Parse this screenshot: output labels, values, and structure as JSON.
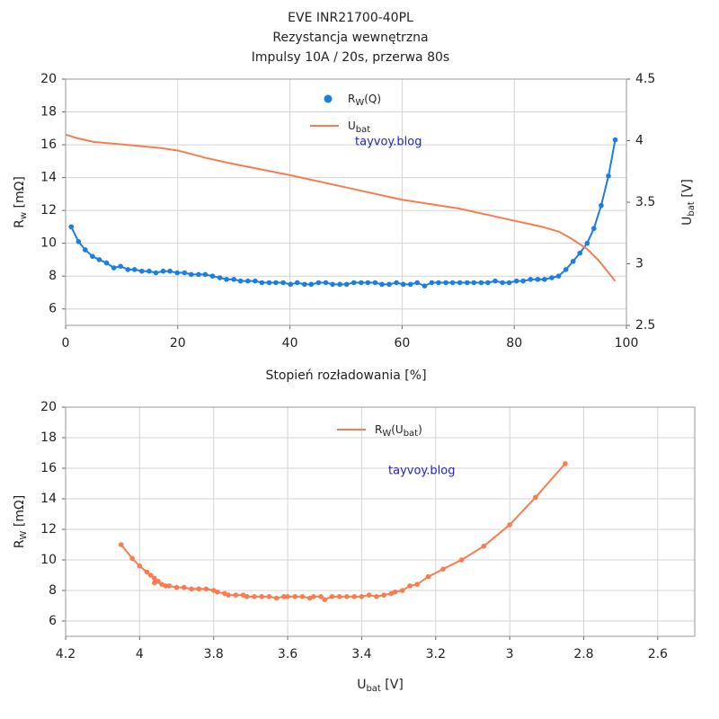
{
  "chart_data": [
    {
      "type": "line",
      "title": [
        "EVE INR21700-40PL",
        "Rezystancja wewnętrzna",
        "Impulsy 10A / 20s, przerwa 80s"
      ],
      "xlabel": [
        "Stopień rozładowania [%]"
      ],
      "ylabel": [
        "R",
        "w",
        " [mΩ]"
      ],
      "y2label": [
        "U",
        "bat",
        " [V]"
      ],
      "annotation": "tayvoy.blog",
      "xlim": [
        0,
        100
      ],
      "xticks": [
        0,
        20,
        40,
        60,
        80,
        100
      ],
      "ylim": [
        5,
        20
      ],
      "yticks": [
        6,
        8,
        10,
        12,
        14,
        16,
        18,
        20
      ],
      "y2lim": [
        2.5,
        4.5
      ],
      "y2ticks": [
        2.5,
        3,
        3.5,
        4,
        4.5
      ],
      "grid": true,
      "legend": "upper center",
      "series": [
        {
          "name": [
            "R",
            "W",
            "(Q)"
          ],
          "color": "#1a7ee6",
          "marker": true,
          "x": [
            1,
            2.3,
            3.5,
            4.8,
            6,
            7.3,
            8.6,
            9.8,
            11.1,
            12.3,
            13.6,
            14.9,
            16.1,
            17.4,
            18.6,
            19.9,
            21.2,
            22.4,
            23.7,
            24.9,
            26.2,
            27.5,
            28.7,
            30,
            31.2,
            32.5,
            33.8,
            35,
            36.3,
            37.5,
            38.8,
            40.1,
            41.3,
            42.6,
            43.8,
            45.1,
            46.4,
            47.6,
            48.9,
            50.1,
            51.4,
            52.7,
            53.9,
            55.2,
            56.4,
            57.7,
            59,
            60.2,
            61.5,
            62.7,
            64,
            65.3,
            66.5,
            67.8,
            69,
            70.3,
            71.6,
            72.8,
            74.1,
            75.3,
            76.6,
            77.9,
            79.1,
            80.4,
            81.6,
            82.9,
            84.2,
            85.4,
            86.7,
            87.9,
            89.2,
            90.5,
            91.7,
            93,
            94.2,
            95.5,
            96.8,
            98
          ],
          "values": [
            11.0,
            10.1,
            9.6,
            9.2,
            9.0,
            8.8,
            8.5,
            8.6,
            8.4,
            8.4,
            8.3,
            8.3,
            8.2,
            8.3,
            8.3,
            8.2,
            8.2,
            8.1,
            8.1,
            8.1,
            8.0,
            7.9,
            7.8,
            7.8,
            7.7,
            7.7,
            7.7,
            7.6,
            7.6,
            7.6,
            7.6,
            7.5,
            7.6,
            7.5,
            7.5,
            7.6,
            7.6,
            7.5,
            7.5,
            7.5,
            7.6,
            7.6,
            7.6,
            7.6,
            7.5,
            7.5,
            7.6,
            7.5,
            7.5,
            7.6,
            7.4,
            7.6,
            7.6,
            7.6,
            7.6,
            7.6,
            7.6,
            7.6,
            7.6,
            7.6,
            7.7,
            7.6,
            7.6,
            7.7,
            7.7,
            7.8,
            7.8,
            7.8,
            7.9,
            8.0,
            8.4,
            8.9,
            9.4,
            10.0,
            10.9,
            12.3,
            14.1,
            16.3
          ]
        },
        {
          "name": [
            "U",
            "bat"
          ],
          "color": "#f87c4f",
          "marker": false,
          "axis": "y2",
          "x": [
            0,
            2,
            5,
            10,
            17,
            20,
            25,
            30,
            40,
            50,
            60,
            70,
            75,
            80,
            85,
            88,
            90,
            93,
            95,
            98
          ],
          "values": [
            4.05,
            4.02,
            3.99,
            3.97,
            3.94,
            3.92,
            3.86,
            3.81,
            3.72,
            3.62,
            3.52,
            3.45,
            3.4,
            3.35,
            3.3,
            3.26,
            3.21,
            3.12,
            3.03,
            2.86
          ]
        }
      ]
    },
    {
      "type": "line",
      "xlabel": [
        "U",
        "bat",
        " [V]"
      ],
      "ylabel": [
        "R",
        "W",
        " [mΩ]"
      ],
      "annotation": "tayvoy.blog",
      "xlim": [
        4.2,
        2.5
      ],
      "xticks": [
        4.2,
        4,
        3.8,
        3.6,
        3.4,
        3.2,
        3,
        2.8,
        2.6
      ],
      "ylim": [
        5,
        20
      ],
      "yticks": [
        6,
        8,
        10,
        12,
        14,
        16,
        18,
        20
      ],
      "grid": true,
      "legend": "upper center",
      "series": [
        {
          "name": [
            "R",
            "W",
            "(U",
            "bat",
            ")"
          ],
          "color": "#f87c4f",
          "marker": true,
          "x": [
            4.05,
            4.02,
            4.0,
            3.98,
            3.97,
            3.96,
            3.96,
            3.95,
            3.94,
            3.93,
            3.92,
            3.9,
            3.88,
            3.86,
            3.84,
            3.82,
            3.8,
            3.79,
            3.77,
            3.76,
            3.74,
            3.72,
            3.71,
            3.69,
            3.67,
            3.65,
            3.63,
            3.61,
            3.6,
            3.58,
            3.56,
            3.54,
            3.53,
            3.51,
            3.5,
            3.48,
            3.46,
            3.44,
            3.42,
            3.4,
            3.38,
            3.36,
            3.34,
            3.32,
            3.31,
            3.29,
            3.27,
            3.25,
            3.22,
            3.18,
            3.13,
            3.07,
            3.0,
            2.93,
            2.85
          ],
          "values": [
            11.0,
            10.1,
            9.6,
            9.2,
            9.0,
            8.8,
            8.5,
            8.6,
            8.4,
            8.3,
            8.3,
            8.2,
            8.2,
            8.1,
            8.1,
            8.1,
            8.0,
            7.9,
            7.8,
            7.7,
            7.7,
            7.7,
            7.6,
            7.6,
            7.6,
            7.6,
            7.5,
            7.6,
            7.6,
            7.6,
            7.6,
            7.5,
            7.6,
            7.6,
            7.4,
            7.6,
            7.6,
            7.6,
            7.6,
            7.6,
            7.7,
            7.6,
            7.7,
            7.8,
            7.9,
            8.0,
            8.3,
            8.4,
            8.9,
            9.4,
            10.0,
            10.9,
            12.3,
            14.1,
            16.3
          ]
        }
      ]
    }
  ]
}
